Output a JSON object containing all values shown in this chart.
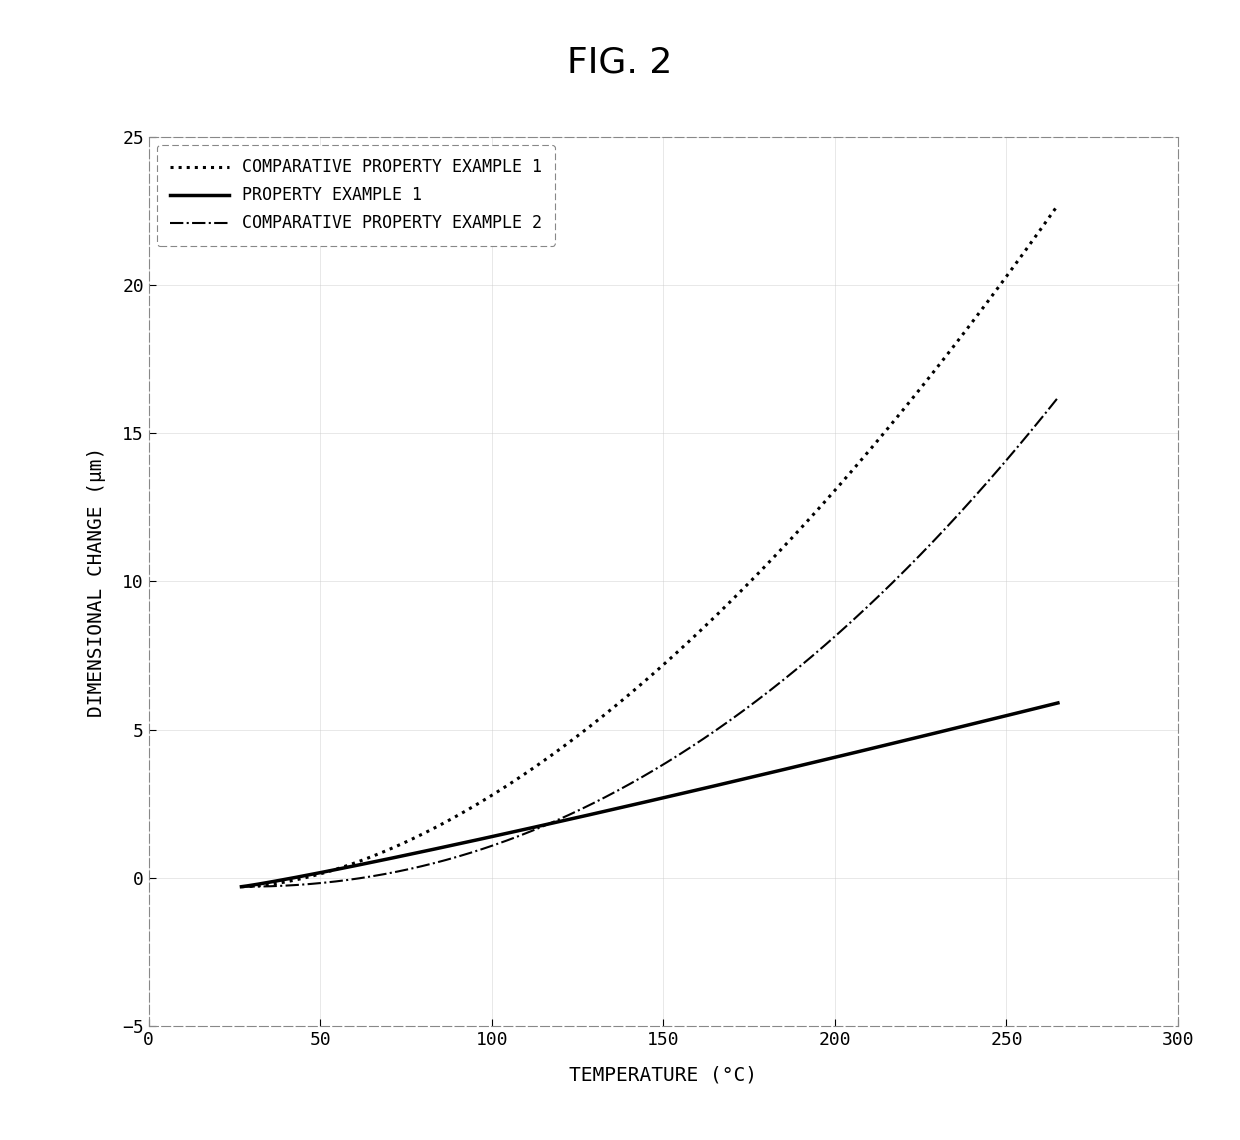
{
  "title": "FIG. 2",
  "xlabel": "TEMPERATURE (°C)",
  "ylabel": "DIMENSIONAL CHANGE (μm)",
  "xlim": [
    0,
    300
  ],
  "ylim": [
    -5,
    25
  ],
  "xticks": [
    0,
    50,
    100,
    150,
    200,
    250,
    300
  ],
  "yticks": [
    -5,
    0,
    5,
    10,
    15,
    20,
    25
  ],
  "legend_entries": [
    "COMPARATIVE PROPERTY EXAMPLE 1",
    "PROPERTY EXAMPLE 1",
    "COMPARATIVE PROPERTY EXAMPLE 2"
  ],
  "line_colors": [
    "#000000",
    "#000000",
    "#000000"
  ],
  "background_color": "#ffffff",
  "plot_bg_color": "#ffffff",
  "x_start": 27,
  "x_end": 265,
  "curve1_power": 1.7,
  "curve1_scale": 23.0,
  "curve1_y0": -0.3,
  "curve2_power": 1.1,
  "curve2_scale": 6.2,
  "curve2_y0": -0.3,
  "curve3_power": 2.1,
  "curve3_scale": 16.5,
  "curve3_y0": -0.3
}
